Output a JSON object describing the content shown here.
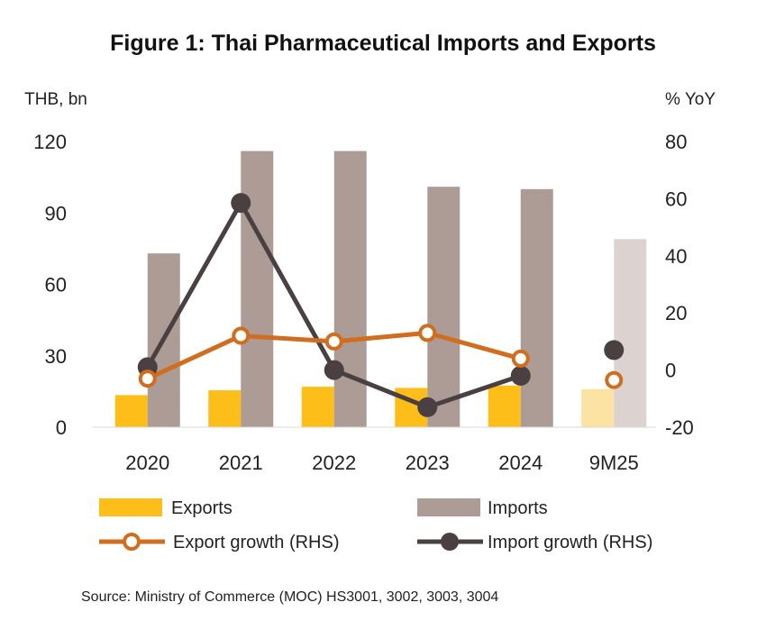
{
  "chart_data": {
    "type": "bar+line",
    "title": "Figure 1: Thai Pharmaceutical Imports and Exports",
    "left_axis_label": "THB, bn",
    "right_axis_label": "% YoY",
    "categories": [
      "2020",
      "2021",
      "2022",
      "2023",
      "2024",
      "9M25"
    ],
    "left_ylim": [
      0,
      120
    ],
    "left_ticks": [
      "0",
      "30",
      "60",
      "90",
      "120"
    ],
    "right_ylim": [
      -20,
      80
    ],
    "right_ticks": [
      "-20",
      "0",
      "20",
      "40",
      "60",
      "80"
    ],
    "series": [
      {
        "name": "Exports",
        "kind": "bar",
        "axis": "left",
        "values": [
          13.5,
          15.5,
          17,
          16.5,
          17.5,
          16
        ],
        "color": "#FDBE1A",
        "last_color": "#FCE3A4"
      },
      {
        "name": "Imports",
        "kind": "bar",
        "axis": "left",
        "values": [
          73,
          116,
          116,
          101,
          100,
          79
        ],
        "color": "#AD9C96",
        "last_color": "#DCD3D0"
      },
      {
        "name": "Export growth (RHS)",
        "kind": "line",
        "axis": "right",
        "marker": "open-circle",
        "values": [
          -3,
          12,
          10,
          13,
          4,
          -3.5
        ],
        "color": "#D06D1F"
      },
      {
        "name": "Import growth (RHS)",
        "kind": "line",
        "axis": "right",
        "marker": "filled-circle",
        "values": [
          1,
          58.5,
          0,
          -13,
          -2,
          7
        ],
        "color": "#4B4041"
      }
    ],
    "legend": [
      "Exports",
      "Imports",
      "Export growth (RHS)",
      "Import growth (RHS)"
    ],
    "source": "Source: Ministry of Commerce (MOC) HS3001, 3002, 3003, 3004"
  }
}
